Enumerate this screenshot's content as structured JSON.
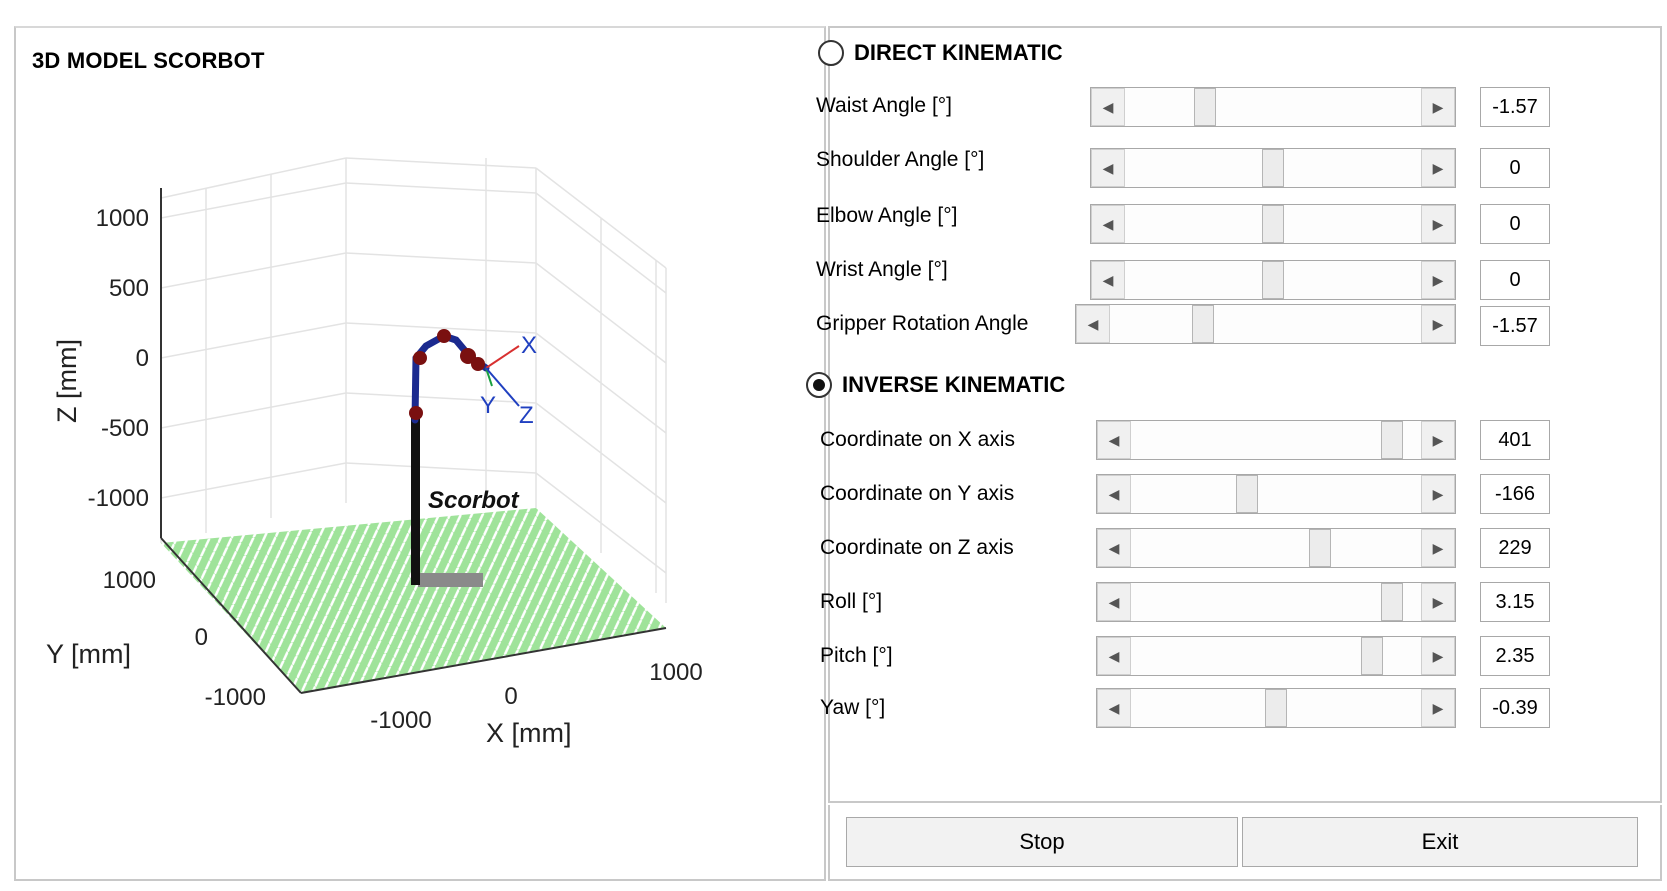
{
  "model_panel": {
    "title": "3D MODEL SCORBOT",
    "plot": {
      "z_axis_label": "Z [mm]",
      "y_axis_label": "Y [mm]",
      "x_axis_label": "X [mm]",
      "z_ticks": [
        "1000",
        "500",
        "0",
        "-500",
        "-1000"
      ],
      "y_ticks": [
        "1000",
        "0",
        "-1000"
      ],
      "x_ticks": [
        "-1000",
        "0",
        "1000"
      ],
      "robot_label": "Scorbot",
      "frame_labels": {
        "x": "X",
        "y": "Y",
        "z": "Z"
      },
      "floor_color": "#9fe39a",
      "robot_link_color": "#1b2a8f",
      "robot_joint_color": "#7a1010"
    }
  },
  "direct_kinematic": {
    "label": "DIRECT KINEMATIC",
    "selected": false,
    "params": [
      {
        "label": "Waist Angle [°]",
        "value": "-1.57",
        "fraction": 0.27
      },
      {
        "label": "Shoulder Angle [°]",
        "value": "0",
        "fraction": 0.5
      },
      {
        "label": "Elbow Angle [°]",
        "value": "0",
        "fraction": 0.5
      },
      {
        "label": "Wrist Angle [°]",
        "value": "0",
        "fraction": 0.5
      },
      {
        "label": "Gripper Rotation Angle",
        "value": "-1.57",
        "fraction": 0.3
      }
    ]
  },
  "inverse_kinematic": {
    "label": "INVERSE KINEMATIC",
    "selected": true,
    "params": [
      {
        "label": "Coordinate on X axis",
        "value": "401",
        "fraction": 0.9
      },
      {
        "label": "Coordinate on Y axis",
        "value": "-166",
        "fraction": 0.4
      },
      {
        "label": "Coordinate on Z axis",
        "value": "229",
        "fraction": 0.65
      },
      {
        "label": "Roll [°]",
        "value": "3.15",
        "fraction": 0.9
      },
      {
        "label": "Pitch [°]",
        "value": "2.35",
        "fraction": 0.83
      },
      {
        "label": "Yaw [°]",
        "value": "-0.39",
        "fraction": 0.5
      }
    ]
  },
  "buttons": {
    "stop": "Stop",
    "exit": "Exit"
  }
}
